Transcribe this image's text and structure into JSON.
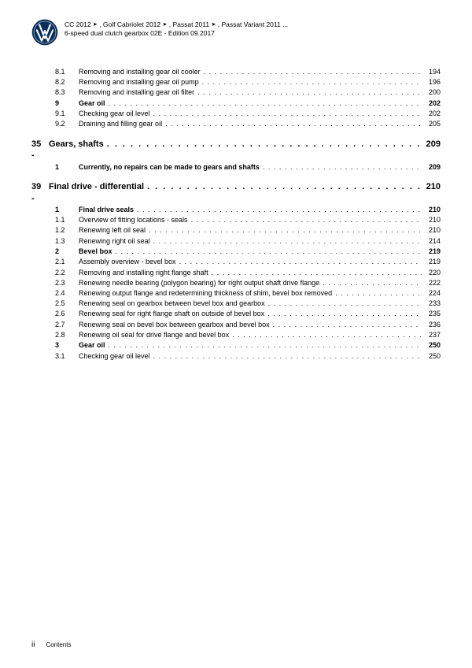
{
  "header": {
    "line1_parts": [
      "CC 2012",
      "Golf Cabriolet 2012",
      "Passat 2011",
      "Passat Variant 2011 ..."
    ],
    "line2": "6-speed dual clutch gearbox 02E - Edition 09.2017"
  },
  "toc": [
    {
      "level": "sub",
      "num": "8.1",
      "title": "Removing and installing gear oil cooler",
      "page": "194"
    },
    {
      "level": "sub",
      "num": "8.2",
      "title": "Removing and installing gear oil pump",
      "page": "196"
    },
    {
      "level": "sub",
      "num": "8.3",
      "title": "Removing and installing gear oil filter",
      "page": "200"
    },
    {
      "level": "sec",
      "num": "9",
      "title": "Gear oil",
      "page": "202"
    },
    {
      "level": "sub",
      "num": "9.1",
      "title": "Checking gear oil level",
      "page": "202"
    },
    {
      "level": "sub",
      "num": "9.2",
      "title": "Draining and filling gear oil",
      "page": "205"
    },
    {
      "level": "chap",
      "num": "35 -",
      "title": "Gears, shafts",
      "page": "209",
      "gapBefore": true
    },
    {
      "level": "sec",
      "num": "1",
      "title": "Currently, no repairs can be made to gears and shafts",
      "page": "209"
    },
    {
      "level": "chap",
      "num": "39 -",
      "title": "Final drive - differential",
      "page": "210",
      "gapBefore": true
    },
    {
      "level": "sec",
      "num": "1",
      "title": "Final drive seals",
      "page": "210"
    },
    {
      "level": "sub",
      "num": "1.1",
      "title": "Overview of fitting locations - seals",
      "page": "210"
    },
    {
      "level": "sub",
      "num": "1.2",
      "title": "Renewing left oil seal",
      "page": "210"
    },
    {
      "level": "sub",
      "num": "1.3",
      "title": "Renewing right oil seal",
      "page": "214"
    },
    {
      "level": "sec",
      "num": "2",
      "title": "Bevel box",
      "page": "219"
    },
    {
      "level": "sub",
      "num": "2.1",
      "title": "Assembly overview - bevel box",
      "page": "219"
    },
    {
      "level": "sub",
      "num": "2.2",
      "title": "Removing and installing right flange shaft",
      "page": "220"
    },
    {
      "level": "sub",
      "num": "2.3",
      "title": "Renewing needle bearing (polygon bearing) for right output shaft drive flange",
      "page": "222"
    },
    {
      "level": "sub",
      "num": "2.4",
      "title": "Renewing output flange and redetermining thickness of shim, bevel box removed",
      "page": "224"
    },
    {
      "level": "sub",
      "num": "2.5",
      "title": "Renewing seal on gearbox between bevel box and gearbox",
      "page": "233"
    },
    {
      "level": "sub",
      "num": "2.6",
      "title": "Renewing seal for right flange shaft on outside of bevel box",
      "page": "235"
    },
    {
      "level": "sub",
      "num": "2.7",
      "title": "Renewing seal on bevel box between gearbox and bevel box",
      "page": "236"
    },
    {
      "level": "sub",
      "num": "2.8",
      "title": "Renewing oil seal for drive flange and bevel box",
      "page": "237"
    },
    {
      "level": "sec",
      "num": "3",
      "title": "Gear oil",
      "page": "250"
    },
    {
      "level": "sub",
      "num": "3.1",
      "title": "Checking gear oil level",
      "page": "250"
    }
  ],
  "footer": {
    "pagenum": "ii",
    "label": "Contents"
  },
  "colors": {
    "logo_ring": "#0a2f5c",
    "logo_inner": "#b8c4d4",
    "logo_letters": "#ffffff"
  }
}
